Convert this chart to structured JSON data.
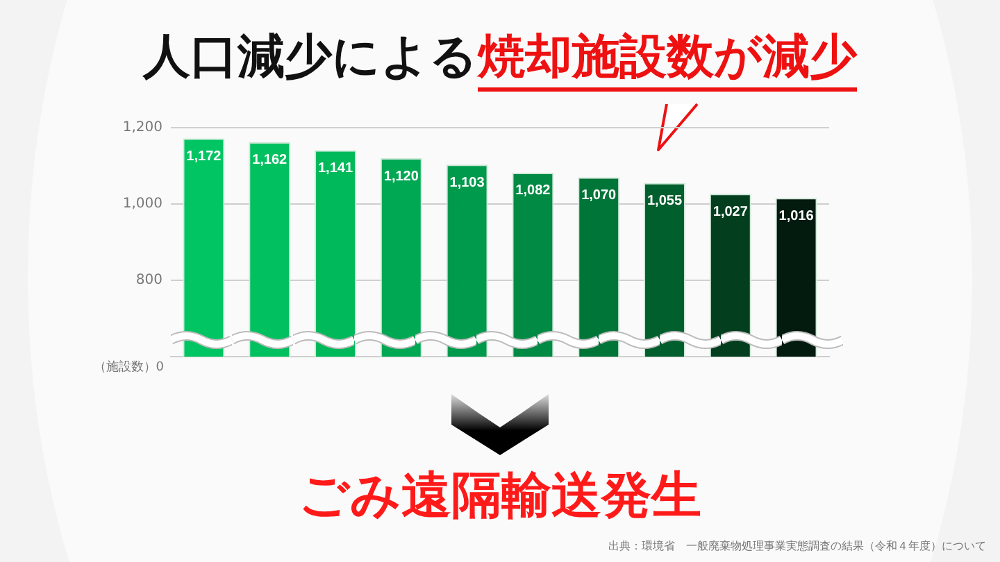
{
  "chart_data": {
    "type": "bar",
    "title": "人口減少による",
    "subtitle": "焼却施設数が減少",
    "ylabel": "（施設数）0",
    "categories": [
      null,
      null,
      null,
      null,
      null,
      null,
      null,
      null,
      null,
      null
    ],
    "values": [
      1172,
      1162,
      1141,
      1120,
      1103,
      1082,
      1070,
      1055,
      1027,
      1016
    ],
    "colors": [
      "#00c562",
      "#00c05f",
      "#00b95a",
      "#00a853",
      "#009a4c",
      "#008a43",
      "#007538",
      "#005f2d",
      "#033f1f",
      "#031a0e"
    ],
    "value_labels": [
      "1,172",
      "1,162",
      "1,141",
      "1,120",
      "1,103",
      "1,082",
      "1,070",
      "1,055",
      "1,027",
      "1,016"
    ],
    "ylim": [
      600,
      1200
    ],
    "yticks": [
      {
        "value": 800,
        "label": "800"
      },
      {
        "value": 1000,
        "label": "1,000"
      },
      {
        "value": 1200,
        "label": "1,200"
      }
    ],
    "grid": "y",
    "legend": false,
    "annotations": [
      "ごみ遠隔輸送発生",
      "出典：環境省　一般廃棄物処理事業実態調査の結果（令和４年度）について"
    ]
  }
}
